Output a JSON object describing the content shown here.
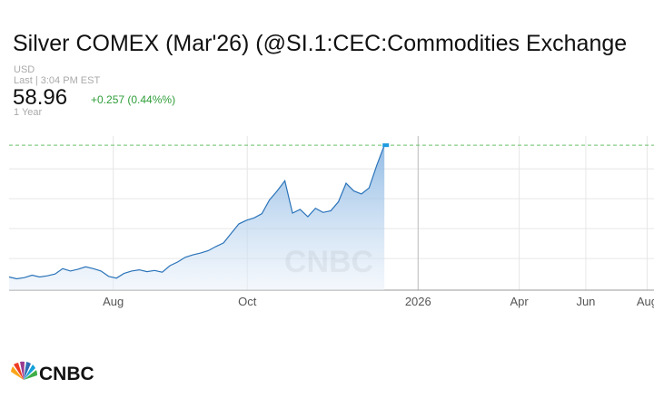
{
  "chart_data": {
    "type": "area",
    "title": "Silver COMEX (Mar'26) (@SI.1:CEC:Commodities Exchange",
    "currency": "USD",
    "last_time": "Last | 3:04 PM EST",
    "price": "58.96",
    "change": "+0.257 (0.44%%)",
    "range": "1 Year",
    "watermark": "CNBC",
    "logo_text": "CNBC",
    "color": "#2a73b9",
    "change_color": "#2f9e3a",
    "grid": true,
    "show_ytick_labels": false,
    "last_price_line": true,
    "ylim": [
      34.7,
      60.5
    ],
    "yticks": [
      40,
      45,
      50,
      55
    ],
    "xlim": [
      0,
      84.2
    ],
    "xticks": [
      {
        "value": 13.6,
        "label": "Aug"
      },
      {
        "value": 31.1,
        "label": "Oct"
      },
      {
        "value": 53.4,
        "label": "2026"
      },
      {
        "value": 66.6,
        "label": "Apr"
      },
      {
        "value": 75.3,
        "label": "Jun"
      },
      {
        "value": 83.3,
        "label": "Aug"
      }
    ],
    "series": [
      {
        "name": "Silver",
        "values": [
          36.9,
          36.6,
          36.8,
          37.2,
          36.9,
          37.1,
          37.4,
          38.3,
          37.9,
          38.2,
          38.6,
          38.3,
          37.9,
          37.0,
          36.7,
          37.5,
          37.9,
          38.1,
          37.8,
          38.0,
          37.7,
          38.8,
          39.4,
          40.2,
          40.6,
          40.9,
          41.3,
          42.0,
          42.6,
          44.2,
          45.8,
          46.4,
          46.8,
          47.5,
          49.8,
          51.3,
          53.0,
          47.6,
          48.2,
          47.0,
          48.4,
          47.7,
          48.0,
          49.5,
          52.6,
          51.3,
          50.8,
          51.8,
          55.6,
          58.96
        ]
      }
    ]
  }
}
